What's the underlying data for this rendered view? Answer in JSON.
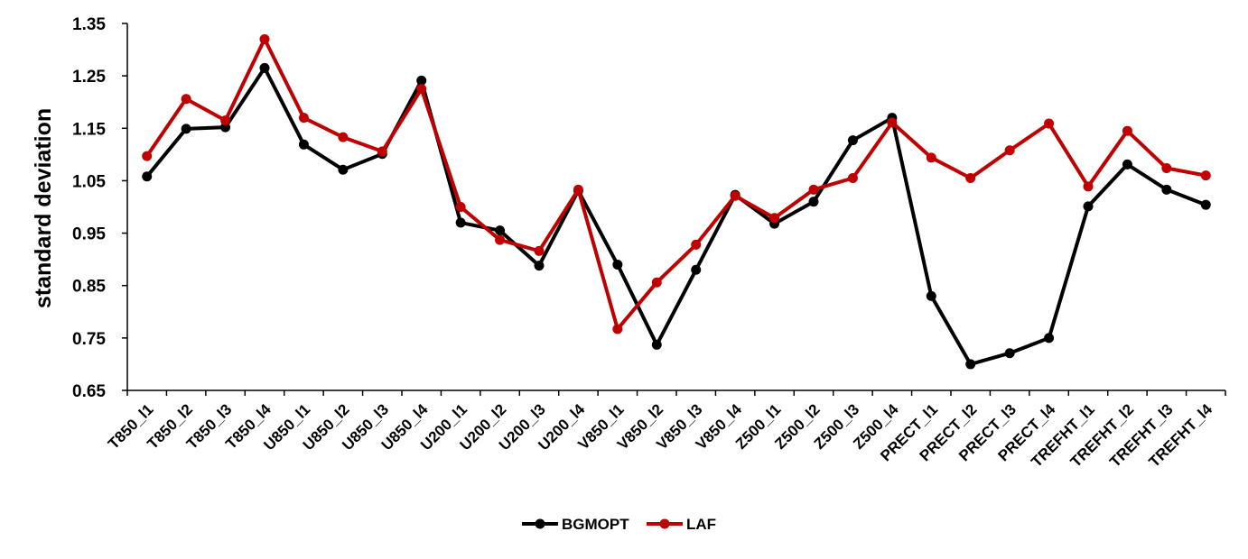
{
  "chart_data": {
    "type": "line",
    "title": "",
    "xlabel": "",
    "ylabel": "standard deviation",
    "ylim": [
      0.65,
      1.35
    ],
    "yticks": [
      "0.65",
      "0.75",
      "0.85",
      "0.95",
      "1.05",
      "1.15",
      "1.25",
      "1.35"
    ],
    "grid": false,
    "legend_position": "bottom",
    "categories": [
      "T850_l1",
      "T850_l2",
      "T850_l3",
      "T850_l4",
      "U850_l1",
      "U850_l2",
      "U850_l3",
      "U850_l4",
      "U200_l1",
      "U200_l2",
      "U200_l3",
      "U200_l4",
      "V850_l1",
      "V850_l2",
      "V850_l3",
      "V850_l4",
      "Z500_l1",
      "Z500_l2",
      "Z500_l3",
      "Z500_l4",
      "PRECT_l1",
      "PRECT_l2",
      "PRECT_l3",
      "PRECT_l4",
      "TREFHT_l1",
      "TREFHT_l2",
      "TREFHT_l3",
      "TREFHT_l4"
    ],
    "series": [
      {
        "name": "BGMOPT",
        "color": "#000000",
        "values": [
          1.058,
          1.149,
          1.152,
          1.265,
          1.119,
          1.071,
          1.101,
          1.241,
          0.97,
          0.955,
          0.888,
          1.031,
          0.89,
          0.737,
          0.88,
          1.023,
          0.968,
          1.01,
          1.127,
          1.17,
          0.83,
          0.7,
          0.721,
          0.75,
          1.001,
          1.081,
          1.033,
          1.004
        ]
      },
      {
        "name": "LAF",
        "color": "#c00000",
        "values": [
          1.097,
          1.206,
          1.165,
          1.32,
          1.17,
          1.133,
          1.106,
          1.225,
          1.0,
          0.937,
          0.916,
          1.033,
          0.767,
          0.856,
          0.928,
          1.021,
          0.979,
          1.033,
          1.055,
          1.161,
          1.094,
          1.055,
          1.108,
          1.159,
          1.039,
          1.145,
          1.074,
          1.06
        ]
      }
    ]
  }
}
